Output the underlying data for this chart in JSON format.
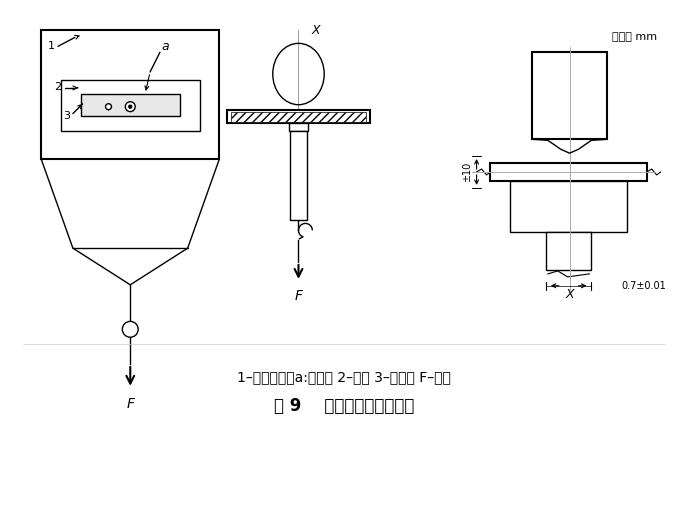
{
  "title_caption": "图 9    加热变形性试验装置",
  "legend_text": "1–试验夹具（a:刀片） 2–试样 3–支持台 F–负载",
  "unit_label": "单位： mm",
  "bg_color": "#ffffff",
  "line_color": "#000000"
}
